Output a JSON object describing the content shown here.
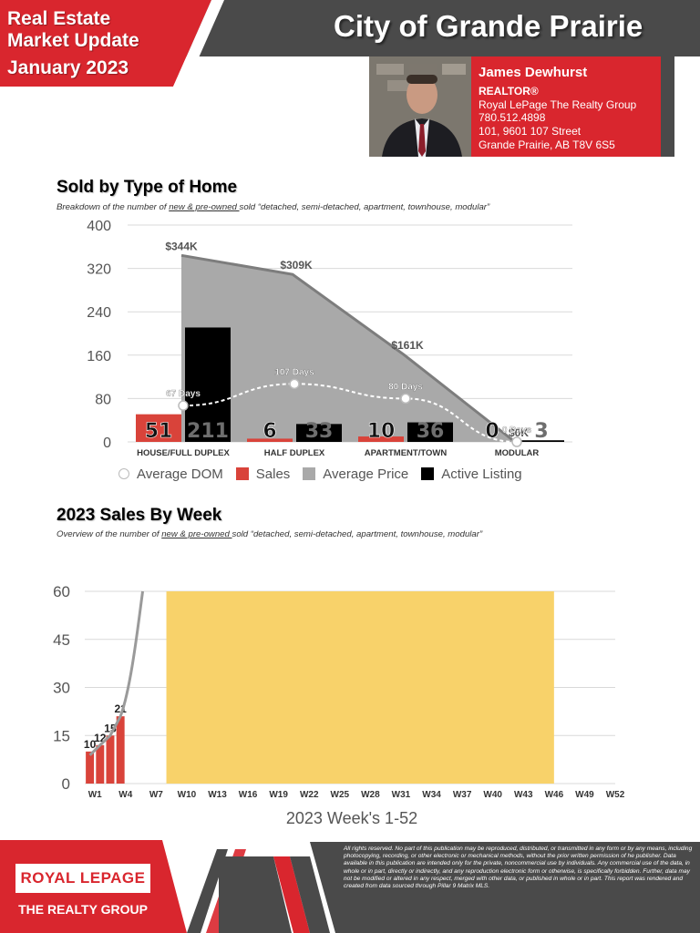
{
  "header": {
    "title_line1": "Real Estate",
    "title_line2": "Market Update",
    "month": "January 2023",
    "city": "City of Grande Prairie"
  },
  "agent": {
    "name": "James Dewhurst",
    "role": "REALTOR®",
    "brokerage": "Royal LePage The Realty Group",
    "phone": "780.512.4898",
    "address1": "101, 9601 107 Street",
    "address2": "Grande Prairie, AB T8V 6S5"
  },
  "section1": {
    "title": "Sold by Type of Home",
    "subtitle_pre": "Breakdown of the number of ",
    "subtitle_u": "new & pre-owned ",
    "subtitle_post": "sold “detached, semi-detached, apartment, townhouse, modular”"
  },
  "section2": {
    "title": "2023 Sales By Week",
    "subtitle_pre": "Overview of the number of ",
    "subtitle_u": "new & pre-owned ",
    "subtitle_post": "sold “detached, semi-detached, apartment, townhouse, modular”"
  },
  "colors": {
    "brand_red": "#d9262e",
    "dark_gray": "#4a4a4a",
    "sales_red": "#d9433a",
    "price_gray": "#a9a9a9",
    "active_black": "#000000",
    "future_yellow": "#f8d26a"
  },
  "chart_data": [
    {
      "type": "bar",
      "categories": [
        "HOUSE/FULL DUPLEX",
        "HALF DUPLEX",
        "APARTMENT/TOWN",
        "MODULAR"
      ],
      "ylim": [
        0,
        400
      ],
      "yticks": [
        0,
        80,
        160,
        240,
        320,
        400
      ],
      "series": [
        {
          "name": "Sales",
          "kind": "bar",
          "values": [
            51,
            6,
            10,
            0
          ],
          "labels": [
            "51",
            "6",
            "10",
            "0"
          ]
        },
        {
          "name": "Active Listing",
          "kind": "bar",
          "values": [
            211,
            33,
            36,
            3
          ],
          "labels": [
            "211",
            "33",
            "36",
            "3"
          ]
        },
        {
          "name": "Average Price",
          "kind": "area",
          "values": [
            344,
            309,
            161,
            0
          ],
          "labels": [
            "$344K",
            "$309K",
            "$161K",
            "$0K"
          ]
        },
        {
          "name": "Average DOM",
          "kind": "line",
          "values": [
            67,
            107,
            80,
            0
          ],
          "labels": [
            "67 Days",
            "107 Days",
            "80 Days",
            "0 Days"
          ]
        }
      ],
      "legend": [
        "Average DOM",
        "Sales",
        "Average Price",
        "Active Listing"
      ]
    },
    {
      "type": "bar",
      "xlabel": "2023 Week's 1-52",
      "ylim": [
        0,
        60
      ],
      "yticks": [
        0,
        15,
        30,
        45,
        60
      ],
      "x_tick_labels": [
        "W1",
        "W4",
        "W7",
        "W10",
        "W13",
        "W16",
        "W19",
        "W22",
        "W25",
        "W28",
        "W31",
        "W34",
        "W37",
        "W40",
        "W43",
        "W46",
        "W49",
        "W52"
      ],
      "series": [
        {
          "name": "Weekly Sales",
          "kind": "bar",
          "weeks": [
            1,
            2,
            3,
            4
          ],
          "values": [
            10,
            12,
            15,
            21
          ],
          "labels": [
            "10",
            "12",
            "15",
            "21"
          ]
        }
      ],
      "future_period": {
        "from_week": 9,
        "to_week": 46
      }
    }
  ],
  "footer": {
    "logo_brand": "ROYAL LEPAGE",
    "logo_tag": "THE REALTY GROUP",
    "disclaimer": "All rights reserved. No part of this publication may be reproduced, distributed, or transmitted in any form or by any means, including photocopying, recording, or other electronic or mechanical methods, without the prior written permission of he publisher. Data available in this publication are intended only for the private, noncommercial use by individuals. Any commercial use of the data, in whole or in part, directly or indirectly, and any reproduction electronic form or otherwise, is specifically forbidden. Further, data may not be modified or altered in any respect, merged with other data, or published in whole or in part. This report was rendered and created from data sourced through Pillar 9 Matrix MLS."
  }
}
